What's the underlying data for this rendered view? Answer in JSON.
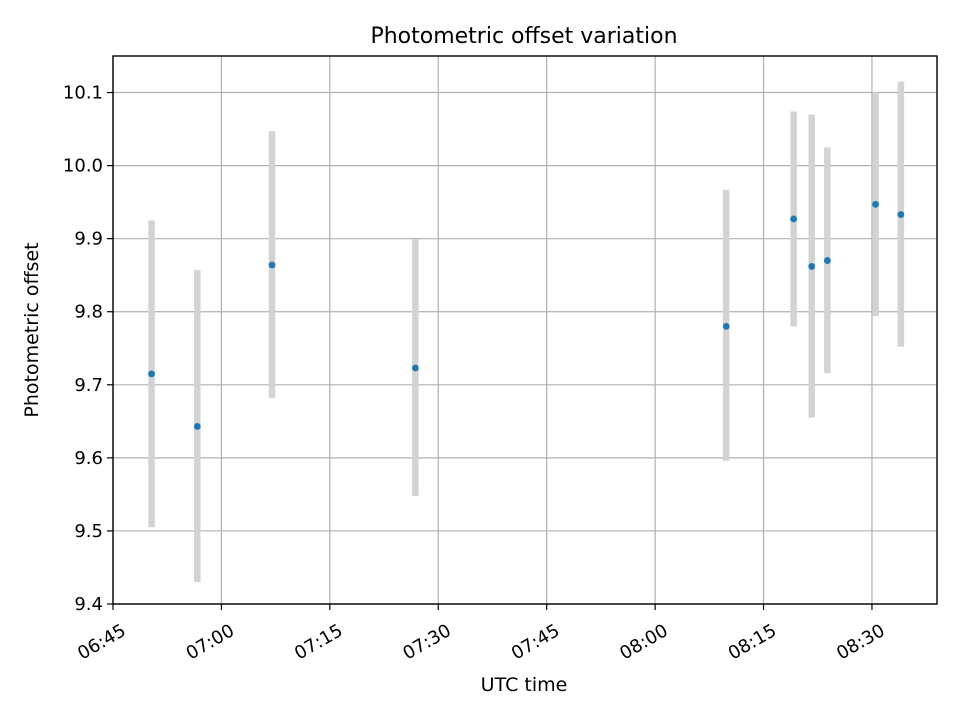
{
  "chart_data": {
    "type": "scatter",
    "title": "Photometric offset variation",
    "xlabel": "UTC time",
    "ylabel": "Photometric offset",
    "x_ticks": [
      "06:45",
      "07:00",
      "07:15",
      "07:30",
      "07:45",
      "08:00",
      "08:15",
      "08:30"
    ],
    "y_ticks": [
      "9.4",
      "9.5",
      "9.6",
      "9.7",
      "9.8",
      "9.9",
      "10.0",
      "10.1"
    ],
    "xlim": [
      "06:45",
      "08:39"
    ],
    "ylim": [
      9.4,
      10.15
    ],
    "grid": true,
    "colors": {
      "point": "#1f77b4",
      "errorbar": "#d3d3d3",
      "grid": "#b0b0b0"
    },
    "points": [
      {
        "x": "06:50:20",
        "y": 9.715,
        "ylow": 9.505,
        "yhigh": 9.925
      },
      {
        "x": "06:56:40",
        "y": 9.643,
        "ylow": 9.43,
        "yhigh": 9.857
      },
      {
        "x": "07:07:00",
        "y": 9.864,
        "ylow": 9.682,
        "yhigh": 10.047
      },
      {
        "x": "07:26:50",
        "y": 9.723,
        "ylow": 9.548,
        "yhigh": 9.899
      },
      {
        "x": "08:09:50",
        "y": 9.78,
        "ylow": 9.596,
        "yhigh": 9.967
      },
      {
        "x": "08:19:10",
        "y": 9.927,
        "ylow": 9.78,
        "yhigh": 10.074
      },
      {
        "x": "08:21:40",
        "y": 9.862,
        "ylow": 9.655,
        "yhigh": 10.07
      },
      {
        "x": "08:23:50",
        "y": 9.87,
        "ylow": 9.716,
        "yhigh": 10.025
      },
      {
        "x": "08:30:30",
        "y": 9.947,
        "ylow": 9.794,
        "yhigh": 10.1
      },
      {
        "x": "08:34:00",
        "y": 9.933,
        "ylow": 9.752,
        "yhigh": 10.115
      }
    ]
  }
}
